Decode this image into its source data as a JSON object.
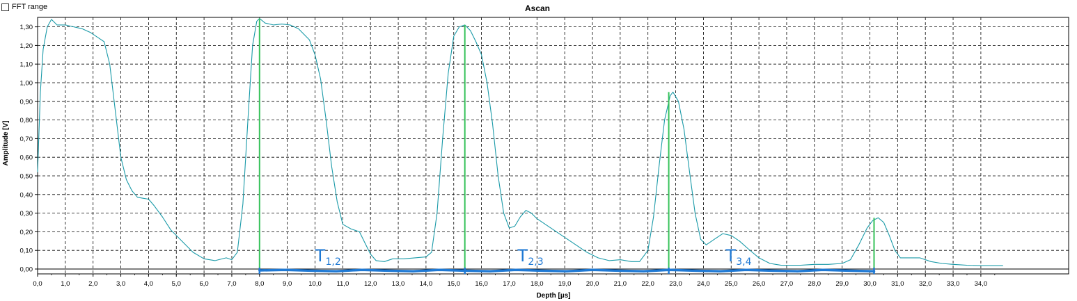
{
  "controls": {
    "fft_range_label": "FFT range",
    "fft_range_checked": false
  },
  "chart_data": {
    "type": "line",
    "title": "Ascan",
    "xlabel": "Depth [µs]",
    "ylabel": "Amplitude [V]",
    "xlim": [
      0,
      34.8
    ],
    "ylim": [
      -0.02,
      1.36
    ],
    "grid": true,
    "x_ticks": [
      "0,0",
      "1,0",
      "2,0",
      "3,0",
      "4,0",
      "5,0",
      "6,0",
      "7,0",
      "8,0",
      "9,0",
      "10,0",
      "11,0",
      "12,0",
      "13,0",
      "14,0",
      "15,0",
      "16,0",
      "17,0",
      "18,0",
      "19,0",
      "20,0",
      "21,0",
      "22,0",
      "23,0",
      "24,0",
      "25,0",
      "26,0",
      "27,0",
      "28,0",
      "29,0",
      "30,0",
      "31,0",
      "32,0",
      "33,0",
      "34,0"
    ],
    "y_ticks": [
      "0,00",
      "0,10",
      "0,20",
      "0,30",
      "0,40",
      "0,50",
      "0,60",
      "0,70",
      "0,80",
      "0,90",
      "1,00",
      "1,10",
      "1,20",
      "1,30"
    ],
    "line_color": "#1a9aa8",
    "series": [
      {
        "points": [
          [
            0.0,
            0.52
          ],
          [
            0.1,
            0.95
          ],
          [
            0.2,
            1.18
          ],
          [
            0.35,
            1.3
          ],
          [
            0.5,
            1.34
          ],
          [
            0.7,
            1.31
          ],
          [
            1.0,
            1.31
          ],
          [
            1.3,
            1.3
          ],
          [
            1.6,
            1.29
          ],
          [
            1.9,
            1.27
          ],
          [
            2.2,
            1.24
          ],
          [
            2.4,
            1.22
          ],
          [
            2.6,
            1.1
          ],
          [
            2.8,
            0.85
          ],
          [
            3.0,
            0.6
          ],
          [
            3.2,
            0.48
          ],
          [
            3.4,
            0.42
          ],
          [
            3.6,
            0.385
          ],
          [
            3.8,
            0.38
          ],
          [
            4.0,
            0.375
          ],
          [
            4.2,
            0.34
          ],
          [
            4.5,
            0.28
          ],
          [
            4.8,
            0.21
          ],
          [
            5.2,
            0.15
          ],
          [
            5.6,
            0.09
          ],
          [
            6.0,
            0.055
          ],
          [
            6.4,
            0.045
          ],
          [
            6.8,
            0.06
          ],
          [
            7.0,
            0.05
          ],
          [
            7.2,
            0.09
          ],
          [
            7.4,
            0.35
          ],
          [
            7.6,
            0.85
          ],
          [
            7.75,
            1.2
          ],
          [
            7.9,
            1.33
          ],
          [
            8.0,
            1.345
          ],
          [
            8.2,
            1.32
          ],
          [
            8.5,
            1.31
          ],
          [
            8.8,
            1.315
          ],
          [
            9.1,
            1.31
          ],
          [
            9.4,
            1.29
          ],
          [
            9.8,
            1.23
          ],
          [
            10.0,
            1.15
          ],
          [
            10.2,
            1.02
          ],
          [
            10.4,
            0.8
          ],
          [
            10.6,
            0.55
          ],
          [
            10.8,
            0.36
          ],
          [
            11.0,
            0.24
          ],
          [
            11.3,
            0.215
          ],
          [
            11.6,
            0.2
          ],
          [
            11.8,
            0.14
          ],
          [
            12.0,
            0.08
          ],
          [
            12.2,
            0.045
          ],
          [
            12.5,
            0.04
          ],
          [
            12.8,
            0.055
          ],
          [
            13.2,
            0.055
          ],
          [
            13.6,
            0.06
          ],
          [
            14.0,
            0.065
          ],
          [
            14.2,
            0.09
          ],
          [
            14.4,
            0.3
          ],
          [
            14.6,
            0.7
          ],
          [
            14.8,
            1.05
          ],
          [
            15.0,
            1.25
          ],
          [
            15.2,
            1.3
          ],
          [
            15.4,
            1.31
          ],
          [
            15.6,
            1.28
          ],
          [
            15.8,
            1.22
          ],
          [
            16.0,
            1.15
          ],
          [
            16.2,
            1.0
          ],
          [
            16.4,
            0.78
          ],
          [
            16.6,
            0.5
          ],
          [
            16.8,
            0.3
          ],
          [
            17.0,
            0.22
          ],
          [
            17.2,
            0.23
          ],
          [
            17.4,
            0.28
          ],
          [
            17.6,
            0.315
          ],
          [
            17.8,
            0.3
          ],
          [
            18.0,
            0.27
          ],
          [
            18.3,
            0.24
          ],
          [
            18.6,
            0.21
          ],
          [
            19.0,
            0.17
          ],
          [
            19.4,
            0.13
          ],
          [
            19.8,
            0.09
          ],
          [
            20.2,
            0.06
          ],
          [
            20.6,
            0.045
          ],
          [
            21.0,
            0.05
          ],
          [
            21.4,
            0.04
          ],
          [
            21.7,
            0.04
          ],
          [
            22.0,
            0.1
          ],
          [
            22.2,
            0.28
          ],
          [
            22.4,
            0.55
          ],
          [
            22.6,
            0.8
          ],
          [
            22.8,
            0.93
          ],
          [
            22.9,
            0.95
          ],
          [
            23.1,
            0.9
          ],
          [
            23.3,
            0.75
          ],
          [
            23.5,
            0.52
          ],
          [
            23.7,
            0.3
          ],
          [
            23.9,
            0.16
          ],
          [
            24.1,
            0.13
          ],
          [
            24.4,
            0.16
          ],
          [
            24.7,
            0.19
          ],
          [
            25.0,
            0.18
          ],
          [
            25.3,
            0.15
          ],
          [
            25.6,
            0.11
          ],
          [
            26.0,
            0.06
          ],
          [
            26.4,
            0.03
          ],
          [
            26.8,
            0.02
          ],
          [
            27.5,
            0.02
          ],
          [
            28.0,
            0.025
          ],
          [
            28.5,
            0.025
          ],
          [
            29.0,
            0.03
          ],
          [
            29.3,
            0.05
          ],
          [
            29.6,
            0.13
          ],
          [
            29.9,
            0.22
          ],
          [
            30.1,
            0.26
          ],
          [
            30.3,
            0.275
          ],
          [
            30.5,
            0.25
          ],
          [
            30.7,
            0.18
          ],
          [
            30.9,
            0.1
          ],
          [
            31.1,
            0.06
          ],
          [
            31.4,
            0.06
          ],
          [
            31.8,
            0.06
          ],
          [
            32.2,
            0.04
          ],
          [
            32.6,
            0.03
          ],
          [
            33.0,
            0.025
          ],
          [
            33.5,
            0.02
          ],
          [
            34.0,
            0.018
          ],
          [
            34.8,
            0.018
          ]
        ]
      }
    ],
    "markers": {
      "color": "#36c25a",
      "x": [
        8.0,
        15.4,
        22.75,
        30.15
      ],
      "y_top": [
        1.345,
        1.31,
        0.95,
        0.275
      ]
    },
    "annotations": {
      "color": "#1f79d4",
      "baseline_x": [
        8.0,
        30.15
      ],
      "labels": [
        {
          "main": "T",
          "sub": "1,2",
          "x": 10.0
        },
        {
          "main": "T",
          "sub": "2,3",
          "x": 17.3
        },
        {
          "main": "T",
          "sub": "3,4",
          "x": 24.8
        }
      ]
    }
  }
}
